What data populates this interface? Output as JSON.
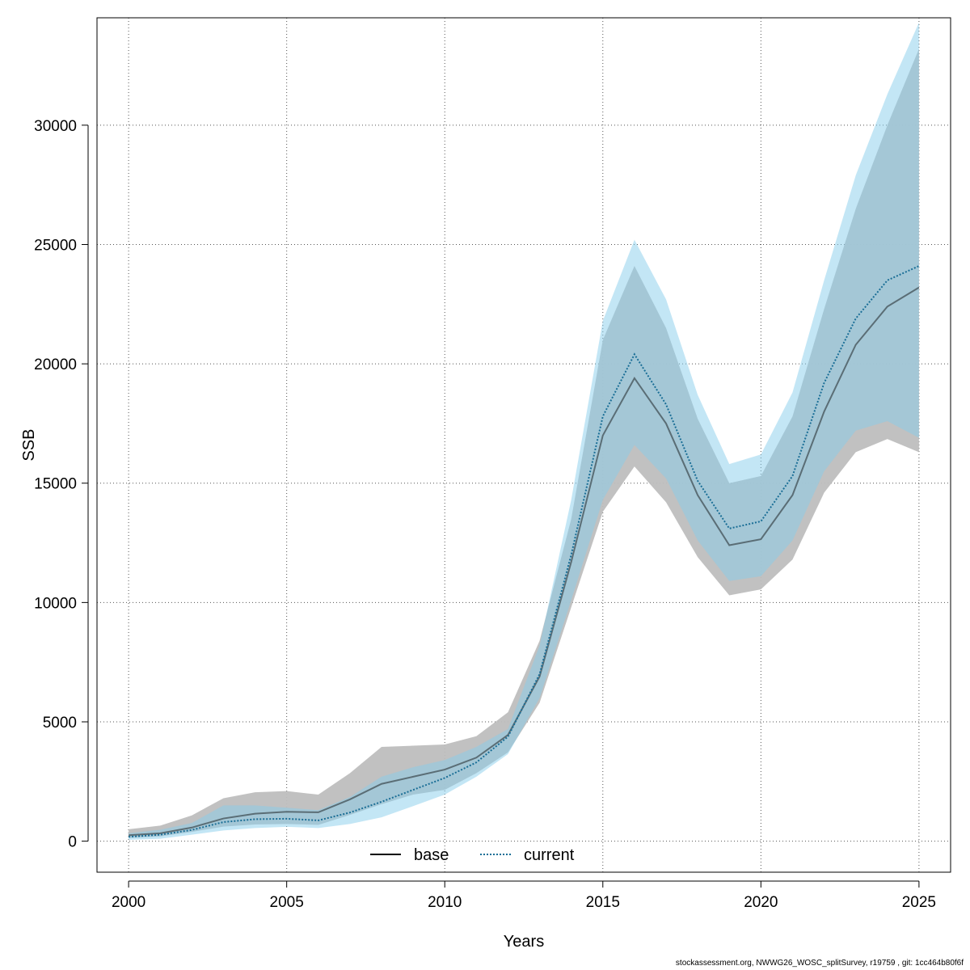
{
  "footer": "stockassessment.org, NWWG26_WOSC_splitSurvey, r19759 , git: 1cc464b80f6f",
  "chart_data": {
    "type": "line",
    "title": "",
    "xlabel": "Years",
    "ylabel": "SSB",
    "xlim": [
      1999,
      2026
    ],
    "ylim": [
      -1300,
      34500
    ],
    "x_ticks": [
      2000,
      2005,
      2010,
      2015,
      2020,
      2025
    ],
    "y_ticks": [
      0,
      5000,
      10000,
      15000,
      20000,
      25000,
      30000
    ],
    "grid": true,
    "legend": {
      "placement": "bottom-center",
      "entries": [
        "base",
        "current"
      ]
    },
    "x": [
      2000,
      2001,
      2002,
      2003,
      2004,
      2005,
      2006,
      2007,
      2008,
      2009,
      2010,
      2011,
      2012,
      2013,
      2014,
      2015,
      2016,
      2017,
      2018,
      2019,
      2020,
      2021,
      2022,
      2023,
      2024,
      2025
    ],
    "series": [
      {
        "name": "base",
        "line_style": "solid",
        "line_color": "#000000",
        "band_color": "#bebebe",
        "values": [
          250,
          330,
          570,
          950,
          1150,
          1230,
          1210,
          1750,
          2400,
          2700,
          3000,
          3500,
          4450,
          6900,
          11700,
          17000,
          19400,
          17500,
          14500,
          12400,
          12650,
          14500,
          18000,
          20800,
          22400,
          23200
        ],
        "lower": [
          140,
          200,
          390,
          610,
          700,
          720,
          680,
          1100,
          1550,
          1950,
          2150,
          2850,
          3720,
          5800,
          9800,
          13800,
          15700,
          14200,
          11900,
          10300,
          10550,
          11800,
          14600,
          16300,
          16850,
          16300
        ],
        "upper": [
          500,
          650,
          1080,
          1800,
          2050,
          2100,
          1950,
          2850,
          3950,
          4000,
          4050,
          4400,
          5400,
          8400,
          13500,
          21000,
          24100,
          21500,
          17700,
          15000,
          15300,
          17800,
          22300,
          26500,
          30000,
          33200
        ]
      },
      {
        "name": "current",
        "line_style": "dotted",
        "line_color": "#1a6e96",
        "band_color": "#87ceeb",
        "values": [
          180,
          270,
          470,
          800,
          920,
          940,
          870,
          1200,
          1650,
          2150,
          2650,
          3300,
          4380,
          7000,
          12000,
          17800,
          20400,
          18300,
          15100,
          13100,
          13400,
          15300,
          19200,
          21900,
          23500,
          24100
        ],
        "lower": [
          60,
          100,
          270,
          450,
          550,
          600,
          550,
          720,
          1000,
          1470,
          1950,
          2700,
          3650,
          6000,
          10100,
          14300,
          16600,
          15200,
          12600,
          10900,
          11100,
          12600,
          15500,
          17200,
          17600,
          16900
        ],
        "upper": [
          330,
          480,
          760,
          1500,
          1500,
          1400,
          1300,
          1850,
          2700,
          3100,
          3400,
          3950,
          4700,
          8200,
          14300,
          21800,
          25200,
          22700,
          18700,
          15800,
          16200,
          18800,
          23500,
          27900,
          31300,
          34300
        ]
      }
    ]
  }
}
